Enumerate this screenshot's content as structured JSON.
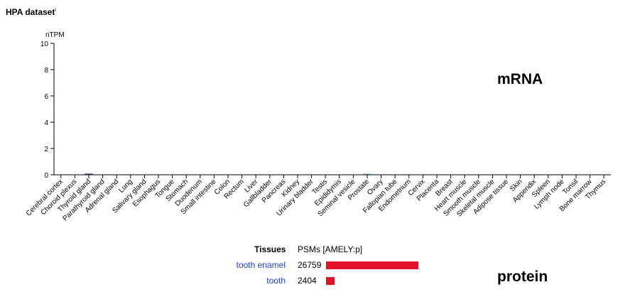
{
  "header": {
    "title": "HPA dataset",
    "info_mark": "i"
  },
  "mrna_label": "mRNA",
  "protein_label": "protein",
  "chart_data": {
    "type": "bar",
    "ylabel": "nTPM",
    "ylim": [
      0,
      10
    ],
    "yticks": [
      0,
      2,
      4,
      6,
      8,
      10
    ],
    "categories": [
      "Cerebral cortex",
      "Choroid plexus",
      "Thyroid gland",
      "Parathyroid gland",
      "Adrenal gland",
      "Lung",
      "Salivary gland",
      "Esophagus",
      "Tongue",
      "Stomach",
      "Duodenum",
      "Small intestine",
      "Colon",
      "Rectum",
      "Liver",
      "Gallbladder",
      "Pancreas",
      "Kidney",
      "Urinary bladder",
      "Testis",
      "Epididymis",
      "Seminal vesicle",
      "Prostate",
      "Ovary",
      "Fallopian tube",
      "Endometrium",
      "Cervix",
      "Placenta",
      "Breast",
      "Heart muscle",
      "Smooth muscle",
      "Skeletal muscle",
      "Adipose tissue",
      "Skin",
      "Appendix",
      "Spleen",
      "Lymph node",
      "Tonsil",
      "Bone marrow",
      "Thymus"
    ],
    "values": [
      0,
      0,
      0.1,
      0,
      0,
      0,
      0,
      0,
      0,
      0,
      0,
      0,
      0,
      0,
      0,
      0,
      0,
      0,
      0,
      0,
      0,
      0,
      0.05,
      0,
      0,
      0,
      0,
      0,
      0,
      0,
      0,
      0,
      0,
      0,
      0,
      0,
      0,
      0,
      0,
      0
    ],
    "bar_colors": [
      "#ffffff",
      "#ffffff",
      "#5b6fa8",
      "#ffffff",
      "#ffffff",
      "#ffffff",
      "#ffffff",
      "#ffffff",
      "#ffffff",
      "#ffffff",
      "#ffffff",
      "#ffffff",
      "#ffffff",
      "#ffffff",
      "#ffffff",
      "#ffffff",
      "#ffffff",
      "#ffffff",
      "#ffffff",
      "#ffffff",
      "#ffffff",
      "#ffffff",
      "#8fc3e6",
      "#ffffff",
      "#ffffff",
      "#ffffff",
      "#ffffff",
      "#ffffff",
      "#ffffff",
      "#ffffff",
      "#ffffff",
      "#ffffff",
      "#ffffff",
      "#ffffff",
      "#ffffff",
      "#ffffff",
      "#ffffff",
      "#ffffff",
      "#ffffff",
      "#ffffff"
    ]
  },
  "protein": {
    "col_tissues": "Tissues",
    "col_psms": "PSMs [AMELY:p]",
    "max_psm": 26759,
    "bar_color": "#e3122b",
    "rows": [
      {
        "tissue": "tooth enamel",
        "psms": "26759",
        "value": 26759
      },
      {
        "tissue": "tooth",
        "psms": "2404",
        "value": 2404
      }
    ]
  }
}
